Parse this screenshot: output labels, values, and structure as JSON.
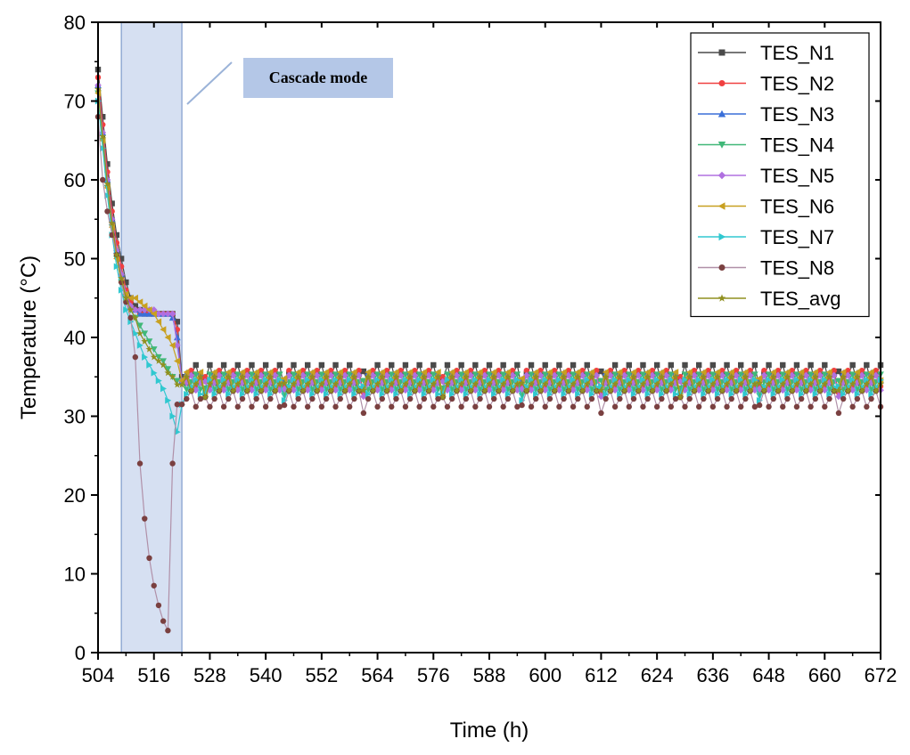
{
  "chart_data": {
    "type": "line",
    "title": "",
    "xlabel": "Time (h)",
    "ylabel": "Temperature (°C)",
    "xlim": [
      504,
      672
    ],
    "ylim": [
      0,
      80
    ],
    "xticks": [
      "504",
      "516",
      "528",
      "540",
      "552",
      "564",
      "576",
      "588",
      "600",
      "612",
      "624",
      "636",
      "648",
      "660",
      "672"
    ],
    "yticks": [
      "0",
      "10",
      "20",
      "30",
      "40",
      "50",
      "60",
      "70",
      "80"
    ],
    "annotation": {
      "text": "Cascade mode",
      "x_start": 509,
      "x_end": 522
    },
    "series": [
      {
        "name": "TES_N1",
        "color": "#4a4a4a",
        "marker": "square",
        "cascade": [
          [
            504,
            74
          ],
          [
            505,
            68
          ],
          [
            506,
            62
          ],
          [
            507,
            57
          ],
          [
            508,
            53
          ],
          [
            509,
            50
          ],
          [
            510,
            47
          ],
          [
            511,
            45
          ],
          [
            512,
            44
          ],
          [
            513,
            43.5
          ],
          [
            514,
            43
          ],
          [
            515,
            43
          ],
          [
            516,
            43
          ],
          [
            517,
            43
          ],
          [
            518,
            43
          ],
          [
            519,
            43
          ],
          [
            520,
            43
          ],
          [
            521,
            42
          ],
          [
            522,
            35
          ]
        ],
        "steady_high": 36.5,
        "steady_low": 34.2
      },
      {
        "name": "TES_N2",
        "color": "#f04040",
        "marker": "circle",
        "cascade": [
          [
            504,
            73
          ],
          [
            505,
            67
          ],
          [
            506,
            61
          ],
          [
            507,
            56
          ],
          [
            508,
            52
          ],
          [
            509,
            49
          ],
          [
            510,
            46
          ],
          [
            511,
            44.5
          ],
          [
            512,
            43.5
          ],
          [
            513,
            43
          ],
          [
            514,
            43
          ],
          [
            515,
            43
          ],
          [
            516,
            43
          ],
          [
            517,
            43
          ],
          [
            518,
            43
          ],
          [
            519,
            43
          ],
          [
            520,
            43
          ],
          [
            521,
            41
          ],
          [
            522,
            34.5
          ]
        ],
        "steady_high": 35.8,
        "steady_low": 33.8
      },
      {
        "name": "TES_N3",
        "color": "#3a6fd8",
        "marker": "triangle-up",
        "cascade": [
          [
            504,
            72
          ],
          [
            505,
            66
          ],
          [
            506,
            60
          ],
          [
            507,
            55
          ],
          [
            508,
            51
          ],
          [
            509,
            48
          ],
          [
            510,
            45.5
          ],
          [
            511,
            44
          ],
          [
            512,
            43.5
          ],
          [
            513,
            43
          ],
          [
            514,
            43
          ],
          [
            515,
            43
          ],
          [
            516,
            43
          ],
          [
            517,
            43
          ],
          [
            518,
            43
          ],
          [
            519,
            43
          ],
          [
            520,
            42.5
          ],
          [
            521,
            40
          ],
          [
            522,
            34.5
          ]
        ],
        "steady_high": 35.5,
        "steady_low": 33.6
      },
      {
        "name": "TES_N4",
        "color": "#40b878",
        "marker": "triangle-down",
        "cascade": [
          [
            504,
            71
          ],
          [
            505,
            65
          ],
          [
            506,
            59
          ],
          [
            507,
            54
          ],
          [
            508,
            50
          ],
          [
            509,
            47
          ],
          [
            510,
            45
          ],
          [
            511,
            43.5
          ],
          [
            512,
            42.5
          ],
          [
            513,
            41.5
          ],
          [
            514,
            40.5
          ],
          [
            515,
            39.5
          ],
          [
            516,
            38.5
          ],
          [
            517,
            37.5
          ],
          [
            518,
            37
          ],
          [
            519,
            36
          ],
          [
            520,
            35
          ],
          [
            521,
            34.5
          ],
          [
            522,
            34.5
          ]
        ],
        "steady_high": 35.3,
        "steady_low": 33.4
      },
      {
        "name": "TES_N5",
        "color": "#b070e0",
        "marker": "diamond",
        "cascade": [
          [
            504,
            72
          ],
          [
            505,
            66
          ],
          [
            506,
            60
          ],
          [
            507,
            55
          ],
          [
            508,
            51
          ],
          [
            509,
            48
          ],
          [
            510,
            45.5
          ],
          [
            511,
            44
          ],
          [
            512,
            43.5
          ],
          [
            513,
            43.5
          ],
          [
            514,
            43.5
          ],
          [
            515,
            43.5
          ],
          [
            516,
            43.5
          ],
          [
            517,
            43
          ],
          [
            518,
            43
          ],
          [
            519,
            43
          ],
          [
            520,
            43
          ],
          [
            521,
            39
          ],
          [
            522,
            34.5
          ]
        ],
        "steady_high": 35.2,
        "steady_low": 33.3
      },
      {
        "name": "TES_N6",
        "color": "#c8a020",
        "marker": "triangle-left",
        "cascade": [
          [
            504,
            71
          ],
          [
            505,
            65
          ],
          [
            506,
            59
          ],
          [
            507,
            54
          ],
          [
            508,
            50
          ],
          [
            509,
            47
          ],
          [
            510,
            45.5
          ],
          [
            511,
            45
          ],
          [
            512,
            45
          ],
          [
            513,
            44.5
          ],
          [
            514,
            44
          ],
          [
            515,
            43.5
          ],
          [
            516,
            43
          ],
          [
            517,
            42
          ],
          [
            518,
            41
          ],
          [
            519,
            40
          ],
          [
            520,
            39
          ],
          [
            521,
            37
          ],
          [
            522,
            34.5
          ]
        ],
        "steady_high": 35.6,
        "steady_low": 33.5
      },
      {
        "name": "TES_N7",
        "color": "#30c8d0",
        "marker": "triangle-right",
        "cascade": [
          [
            504,
            70
          ],
          [
            505,
            64
          ],
          [
            506,
            58
          ],
          [
            507,
            53
          ],
          [
            508,
            49
          ],
          [
            509,
            46
          ],
          [
            510,
            43.5
          ],
          [
            511,
            42
          ],
          [
            512,
            40.5
          ],
          [
            513,
            39
          ],
          [
            514,
            37.5
          ],
          [
            515,
            36.5
          ],
          [
            516,
            35.5
          ],
          [
            517,
            34.5
          ],
          [
            518,
            33.5
          ],
          [
            519,
            32
          ],
          [
            520,
            30
          ],
          [
            521,
            28
          ],
          [
            522,
            31.5
          ]
        ],
        "steady_high": 34.6,
        "steady_low": 32.8
      },
      {
        "name": "TES_N8",
        "color": "#7a4040",
        "line": "#b090a8",
        "marker": "circle",
        "cascade": [
          [
            504,
            68
          ],
          [
            505,
            60
          ],
          [
            506,
            56
          ],
          [
            507,
            53
          ],
          [
            508,
            50.5
          ],
          [
            509,
            47
          ],
          [
            510,
            44.5
          ],
          [
            511,
            42.5
          ],
          [
            512,
            37.5
          ],
          [
            513,
            24
          ],
          [
            514,
            17
          ],
          [
            515,
            12
          ],
          [
            516,
            8.5
          ],
          [
            517,
            6
          ],
          [
            518,
            4
          ],
          [
            519,
            2.8
          ],
          [
            520,
            24
          ],
          [
            521,
            31.5
          ],
          [
            522,
            31.5
          ]
        ],
        "steady_high": 33.2,
        "steady_low": 31.2
      },
      {
        "name": "TES_avg",
        "color": "#909020",
        "marker": "star",
        "cascade": [
          [
            504,
            71.5
          ],
          [
            505,
            65.5
          ],
          [
            506,
            59.5
          ],
          [
            507,
            54.5
          ],
          [
            508,
            50.5
          ],
          [
            509,
            47.5
          ],
          [
            510,
            45
          ],
          [
            511,
            43.5
          ],
          [
            512,
            42.5
          ],
          [
            513,
            40.5
          ],
          [
            514,
            39.5
          ],
          [
            515,
            38.5
          ],
          [
            516,
            37.5
          ],
          [
            517,
            37
          ],
          [
            518,
            36.5
          ],
          [
            519,
            35.5
          ],
          [
            520,
            35
          ],
          [
            521,
            34
          ],
          [
            522,
            34
          ]
        ],
        "steady_high": 35.0,
        "steady_low": 33.2
      }
    ]
  }
}
